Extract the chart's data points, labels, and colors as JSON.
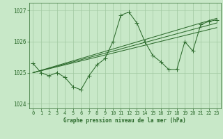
{
  "title": "Graphe pression niveau de la mer (hPa)",
  "bg_color": "#c8e8c8",
  "line_color": "#2d6b2d",
  "grid_color": "#a0c8a0",
  "hours": [
    0,
    1,
    2,
    3,
    4,
    5,
    6,
    7,
    8,
    9,
    10,
    11,
    12,
    13,
    14,
    15,
    16,
    17,
    18,
    19,
    20,
    21,
    22,
    23
  ],
  "pressure": [
    1025.3,
    1025.0,
    1024.9,
    1025.0,
    1024.85,
    1024.55,
    1024.45,
    1024.9,
    1025.25,
    1025.45,
    1026.0,
    1026.85,
    1026.95,
    1026.6,
    1026.0,
    1025.55,
    1025.35,
    1025.1,
    1025.1,
    1026.0,
    1025.7,
    1026.55,
    1026.65,
    1026.7
  ],
  "trend_lines": [
    [
      1025.0,
      1026.75
    ],
    [
      1025.0,
      1026.6
    ],
    [
      1025.0,
      1026.45
    ]
  ],
  "ylim": [
    1023.85,
    1027.25
  ],
  "xlim": [
    -0.5,
    23.5
  ],
  "yticks": [
    1024,
    1025,
    1026,
    1027
  ],
  "xticks": [
    0,
    1,
    2,
    3,
    4,
    5,
    6,
    7,
    8,
    9,
    10,
    11,
    12,
    13,
    14,
    15,
    16,
    17,
    18,
    19,
    20,
    21,
    22,
    23
  ],
  "tick_fontsize": 5.0,
  "label_fontsize": 5.5,
  "linewidth": 0.75,
  "markersize": 2.0
}
